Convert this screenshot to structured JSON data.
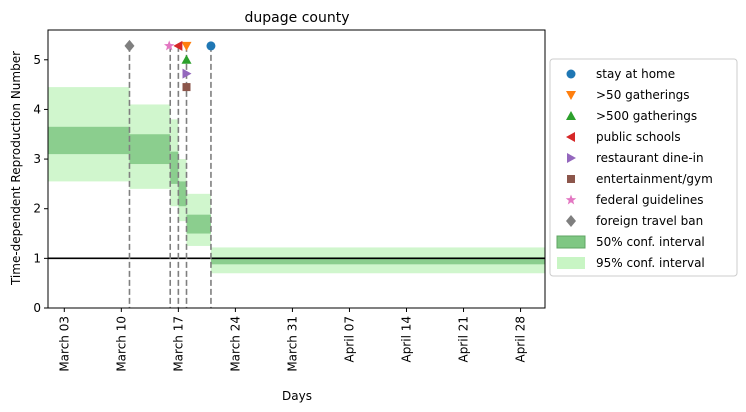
{
  "chart_data": {
    "type": "line",
    "title": "dupage county",
    "xlabel": "Days",
    "ylabel": "Time-dependent Reproduction Number",
    "xlim": [
      "2020-03-01",
      "2020-05-01"
    ],
    "ylim": [
      0,
      5.6
    ],
    "yticks": [
      0,
      1,
      2,
      3,
      4,
      5
    ],
    "xticks": [
      {
        "date": "2020-03-03",
        "label": "March 03"
      },
      {
        "date": "2020-03-10",
        "label": "March 10"
      },
      {
        "date": "2020-03-17",
        "label": "March 17"
      },
      {
        "date": "2020-03-24",
        "label": "March 24"
      },
      {
        "date": "2020-03-31",
        "label": "March 31"
      },
      {
        "date": "2020-04-07",
        "label": "April 07"
      },
      {
        "date": "2020-04-14",
        "label": "April 14"
      },
      {
        "date": "2020-04-21",
        "label": "April 21"
      },
      {
        "date": "2020-04-28",
        "label": "April 28"
      }
    ],
    "reference_line": {
      "y": 1,
      "color": "#000000"
    },
    "intervals": [
      {
        "start": "2020-03-01",
        "end": "2020-03-11",
        "ci50": [
          3.1,
          3.65
        ],
        "ci95": [
          2.55,
          4.45
        ]
      },
      {
        "start": "2020-03-11",
        "end": "2020-03-16",
        "ci50": [
          2.9,
          3.5
        ],
        "ci95": [
          2.4,
          4.1
        ]
      },
      {
        "start": "2020-03-16",
        "end": "2020-03-17",
        "ci50": [
          2.5,
          3.15
        ],
        "ci95": [
          2.05,
          3.8
        ]
      },
      {
        "start": "2020-03-17",
        "end": "2020-03-18",
        "ci50": [
          2.05,
          2.55
        ],
        "ci95": [
          1.75,
          3.0
        ]
      },
      {
        "start": "2020-03-18",
        "end": "2020-03-21",
        "ci50": [
          1.5,
          1.88
        ],
        "ci95": [
          1.25,
          2.3
        ]
      },
      {
        "start": "2020-03-21",
        "end": "2020-05-01",
        "ci50": [
          0.88,
          1.02
        ],
        "ci95": [
          0.7,
          1.22
        ]
      }
    ],
    "interventions": [
      {
        "name": "stay at home",
        "date": "2020-03-21",
        "y": 5.28,
        "marker": "circle",
        "color": "#1f77b4"
      },
      {
        "name": ">50 gatherings",
        "date": "2020-03-18",
        "y": 5.28,
        "marker": "triangle-down",
        "color": "#ff7f0e"
      },
      {
        "name": ">500 gatherings",
        "date": "2020-03-18",
        "y": 5.0,
        "marker": "triangle-up",
        "color": "#2ca02c"
      },
      {
        "name": "public schools",
        "date": "2020-03-17",
        "y": 5.28,
        "marker": "triangle-left",
        "color": "#d62728"
      },
      {
        "name": "restaurant dine-in",
        "date": "2020-03-18",
        "y": 4.72,
        "marker": "triangle-right",
        "color": "#9467bd"
      },
      {
        "name": "entertainment/gym",
        "date": "2020-03-18",
        "y": 4.45,
        "marker": "square",
        "color": "#8c564b"
      },
      {
        "name": "federal guidelines",
        "date": "2020-03-16",
        "y": 5.28,
        "marker": "star",
        "color": "#e377c2"
      },
      {
        "name": "foreign travel ban",
        "date": "2020-03-11",
        "y": 5.28,
        "marker": "diamond",
        "color": "#7f7f7f"
      }
    ],
    "vlines": [
      "2020-03-11",
      "2020-03-16",
      "2020-03-17",
      "2020-03-18",
      "2020-03-21"
    ],
    "legend": {
      "position": "right",
      "ci50_label": "50% conf. interval",
      "ci95_label": "95% conf. interval"
    },
    "colors": {
      "ci50": "#7fc783",
      "ci95": "#c8f5c4",
      "vline": "#7f7f7f"
    }
  }
}
